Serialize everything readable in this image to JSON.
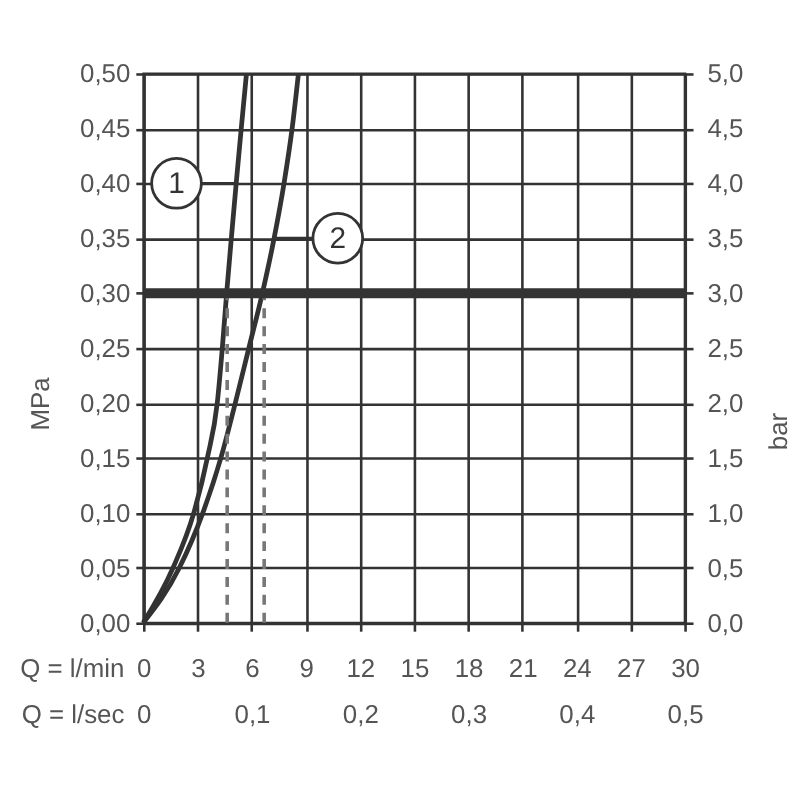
{
  "chart_data": {
    "type": "line",
    "xlabel": "Q = l/min",
    "x2label": "Q = l/sec",
    "ylabel": "MPa",
    "y2label": "bar",
    "xlim": [
      0,
      30
    ],
    "xticks": [
      0,
      3,
      6,
      9,
      12,
      15,
      18,
      21,
      24,
      27,
      30
    ],
    "x2lim": [
      0,
      0.5
    ],
    "x2ticks": [
      {
        "value": 0,
        "label": "0"
      },
      {
        "value": 0.1,
        "label": "0,1"
      },
      {
        "value": 0.2,
        "label": "0,2"
      },
      {
        "value": 0.3,
        "label": "0,3"
      },
      {
        "value": 0.4,
        "label": "0,4"
      },
      {
        "value": 0.5,
        "label": "0,5"
      }
    ],
    "ylim": [
      0,
      0.5
    ],
    "yticks": [
      {
        "value": 0,
        "label": "0,00"
      },
      {
        "value": 0.05,
        "label": "0,05"
      },
      {
        "value": 0.1,
        "label": "0,10"
      },
      {
        "value": 0.15,
        "label": "0,15"
      },
      {
        "value": 0.2,
        "label": "0,20"
      },
      {
        "value": 0.25,
        "label": "0,25"
      },
      {
        "value": 0.3,
        "label": "0,30"
      },
      {
        "value": 0.35,
        "label": "0,35"
      },
      {
        "value": 0.4,
        "label": "0,40"
      },
      {
        "value": 0.45,
        "label": "0,45"
      },
      {
        "value": 0.5,
        "label": "0,50"
      }
    ],
    "y2lim": [
      0,
      5
    ],
    "y2ticks": [
      {
        "value": 0,
        "label": "0,0"
      },
      {
        "value": 0.5,
        "label": "0,5"
      },
      {
        "value": 1,
        "label": "1,0"
      },
      {
        "value": 1.5,
        "label": "1,5"
      },
      {
        "value": 2,
        "label": "2,0"
      },
      {
        "value": 2.5,
        "label": "2,5"
      },
      {
        "value": 3,
        "label": "3,0"
      },
      {
        "value": 3.5,
        "label": "3,5"
      },
      {
        "value": 4,
        "label": "4,0"
      },
      {
        "value": 4.5,
        "label": "4,5"
      },
      {
        "value": 5,
        "label": "5,0"
      }
    ],
    "grid": true,
    "series": [
      {
        "name": "1",
        "color": "#333333",
        "x": [
          0,
          1.65,
          2.8,
          3.55,
          4.1,
          4.38,
          4.62,
          4.88,
          5.15,
          5.43,
          5.72
        ],
        "values": [
          0,
          0.05,
          0.1,
          0.15,
          0.2,
          0.25,
          0.3,
          0.35,
          0.4,
          0.45,
          0.5
        ]
      },
      {
        "name": "2",
        "color": "#333333",
        "x": [
          0,
          2.0,
          3.3,
          4.3,
          5.1,
          5.85,
          6.6,
          7.25,
          7.8,
          8.25,
          8.6
        ],
        "values": [
          0,
          0.05,
          0.1,
          0.15,
          0.2,
          0.25,
          0.3,
          0.35,
          0.4,
          0.45,
          0.5
        ]
      },
      {
        "color": "#777777",
        "line_style": "dashed",
        "x": [
          4.65,
          4.65
        ],
        "values": [
          0,
          0.3
        ]
      },
      {
        "color": "#777777",
        "line_style": "dashed",
        "x": [
          6.7,
          6.7
        ],
        "values": [
          0,
          0.3
        ]
      }
    ],
    "ref_lines": [
      {
        "axis": "y",
        "value": 0.3,
        "color": "#333333"
      }
    ]
  }
}
